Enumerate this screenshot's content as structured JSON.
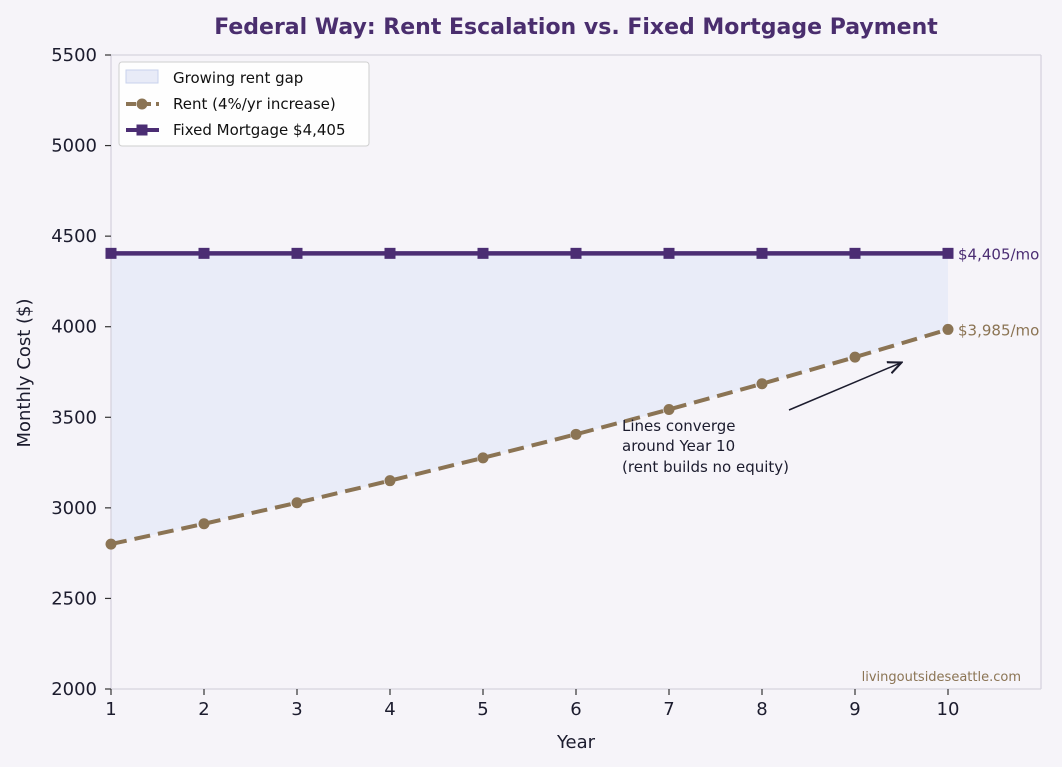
{
  "colors": {
    "background": "#f6f4f9",
    "fill": "#e8ebf7",
    "rent": "#8b7454",
    "mortgage": "#4b2d73",
    "title": "#4a2e6e",
    "axis": "#d6d3de"
  },
  "chart_data": {
    "type": "line",
    "title": "Federal Way: Rent Escalation vs. Fixed Mortgage Payment",
    "xlabel": "Year",
    "ylabel": "Monthly Cost ($)",
    "xlim": [
      1,
      11
    ],
    "ylim": [
      2000,
      5500
    ],
    "x": [
      1,
      2,
      3,
      4,
      5,
      6,
      7,
      8,
      9,
      10
    ],
    "x_ticks": [
      1,
      2,
      3,
      4,
      5,
      6,
      7,
      8,
      9,
      10
    ],
    "y_ticks": [
      2000,
      2500,
      3000,
      3500,
      4000,
      4500,
      5000,
      5500
    ],
    "grid": false,
    "legend_position": "top-left",
    "series": [
      {
        "name": "Rent (4%/yr increase)",
        "values": [
          2800,
          2912,
          3028,
          3150,
          3276,
          3406,
          3543,
          3685,
          3832,
          3985
        ],
        "style": "dashed",
        "marker": "circle"
      },
      {
        "name": "Fixed Mortgage $4,405",
        "values": [
          4405,
          4405,
          4405,
          4405,
          4405,
          4405,
          4405,
          4405,
          4405,
          4405
        ],
        "style": "solid",
        "marker": "square"
      }
    ],
    "fill_between": {
      "name": "Growing rent gap"
    },
    "end_labels": [
      "$4,405/mo",
      "$3,985/mo"
    ],
    "annotation": {
      "lines": [
        "Lines converge",
        "around Year 10",
        "(rent builds no equity)"
      ],
      "arrow_target": {
        "x": 9.5,
        "y": 3830
      }
    },
    "watermark": "livingoutsideseattle.com"
  }
}
